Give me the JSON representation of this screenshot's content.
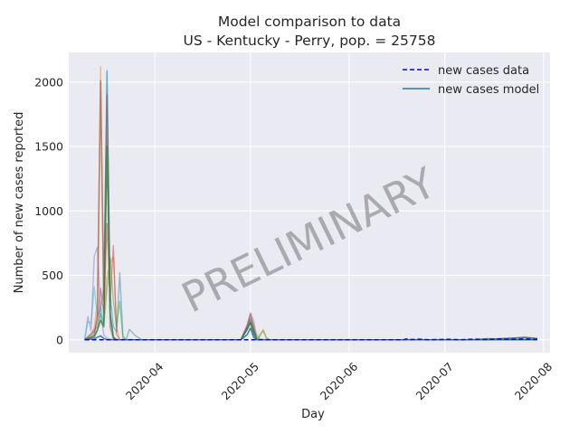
{
  "chart_data": {
    "type": "line",
    "title_line1": "Model comparison to data",
    "title_line2": "US - Kentucky - Perry, pop. = 25758",
    "xlabel": "Day",
    "ylabel": "Number of new cases reported",
    "watermark": "PRELIMINARY",
    "x_start": "2020-03-10",
    "x_end": "2020-07-30",
    "xlim": [
      "2020-03-05",
      "2020-08-03"
    ],
    "ylim": [
      -100,
      2230
    ],
    "x_ticks": [
      {
        "date": "2020-04-01",
        "label": "2020-04"
      },
      {
        "date": "2020-05-01",
        "label": "2020-05"
      },
      {
        "date": "2020-06-01",
        "label": "2020-06"
      },
      {
        "date": "2020-07-01",
        "label": "2020-07"
      },
      {
        "date": "2020-08-01",
        "label": "2020-08"
      }
    ],
    "y_ticks": [
      0,
      500,
      1000,
      1500,
      2000
    ],
    "grid": true,
    "legend": {
      "placement": "top-right",
      "entries": [
        {
          "label": "new cases data",
          "style": "dashed",
          "color": "#0000ff"
        },
        {
          "label": "new cases model",
          "style": "solid",
          "color": "#1f77b4"
        }
      ]
    },
    "series": [
      {
        "label": "new cases data",
        "color": "#0000ff",
        "dash": true,
        "opacity": 1,
        "width": 1.6,
        "points": [
          [
            "2020-03-10",
            0
          ],
          [
            "2020-04-15",
            0
          ],
          [
            "2020-06-18",
            0
          ],
          [
            "2020-06-19",
            6
          ],
          [
            "2020-06-20",
            1
          ],
          [
            "2020-06-23",
            4
          ],
          [
            "2020-06-26",
            0
          ],
          [
            "2020-07-02",
            3
          ],
          [
            "2020-07-06",
            0
          ],
          [
            "2020-07-10",
            4
          ],
          [
            "2020-07-14",
            2
          ],
          [
            "2020-07-18",
            6
          ],
          [
            "2020-07-22",
            3
          ],
          [
            "2020-07-26",
            5
          ],
          [
            "2020-07-30",
            2
          ]
        ]
      },
      {
        "color": "#9467bd",
        "opacity": 0.45,
        "width": 1.4,
        "points": [
          [
            "2020-03-10",
            0
          ],
          [
            "2020-03-11",
            180
          ],
          [
            "2020-03-12",
            70
          ],
          [
            "2020-03-13",
            650
          ],
          [
            "2020-03-14",
            720
          ],
          [
            "2020-03-15",
            200
          ],
          [
            "2020-03-16",
            40
          ],
          [
            "2020-03-17",
            10
          ],
          [
            "2020-03-18",
            5
          ],
          [
            "2020-03-20",
            0
          ],
          [
            "2020-04-28",
            0
          ],
          [
            "2020-04-30",
            120
          ],
          [
            "2020-05-01",
            210
          ],
          [
            "2020-05-02",
            150
          ],
          [
            "2020-05-03",
            20
          ],
          [
            "2020-05-05",
            0
          ],
          [
            "2020-07-30",
            0
          ]
        ]
      },
      {
        "color": "#17becf",
        "opacity": 0.45,
        "width": 1.4,
        "points": [
          [
            "2020-03-10",
            0
          ],
          [
            "2020-03-11",
            140
          ],
          [
            "2020-03-12",
            130
          ],
          [
            "2020-03-13",
            410
          ],
          [
            "2020-03-14",
            180
          ],
          [
            "2020-03-15",
            260
          ],
          [
            "2020-03-16",
            120
          ],
          [
            "2020-03-17",
            2080
          ],
          [
            "2020-03-18",
            200
          ],
          [
            "2020-03-19",
            20
          ],
          [
            "2020-03-20",
            0
          ],
          [
            "2020-04-28",
            0
          ],
          [
            "2020-04-30",
            90
          ],
          [
            "2020-05-01",
            160
          ],
          [
            "2020-05-02",
            80
          ],
          [
            "2020-05-04",
            0
          ],
          [
            "2020-07-30",
            0
          ]
        ]
      },
      {
        "color": "#ff7f0e",
        "opacity": 0.45,
        "width": 1.4,
        "points": [
          [
            "2020-03-10",
            0
          ],
          [
            "2020-03-12",
            30
          ],
          [
            "2020-03-13",
            100
          ],
          [
            "2020-03-14",
            300
          ],
          [
            "2020-03-15",
            2120
          ],
          [
            "2020-03-16",
            150
          ],
          [
            "2020-03-17",
            500
          ],
          [
            "2020-03-18",
            600
          ],
          [
            "2020-03-19",
            640
          ],
          [
            "2020-03-20",
            100
          ],
          [
            "2020-03-21",
            0
          ],
          [
            "2020-04-28",
            0
          ],
          [
            "2020-04-30",
            100
          ],
          [
            "2020-05-01",
            190
          ],
          [
            "2020-05-02",
            120
          ],
          [
            "2020-05-03",
            0
          ],
          [
            "2020-05-04",
            40
          ],
          [
            "2020-05-05",
            80
          ],
          [
            "2020-05-06",
            20
          ],
          [
            "2020-05-07",
            0
          ],
          [
            "2020-07-30",
            0
          ]
        ]
      },
      {
        "color": "#d62728",
        "opacity": 0.45,
        "width": 1.4,
        "points": [
          [
            "2020-03-10",
            0
          ],
          [
            "2020-03-13",
            60
          ],
          [
            "2020-03-14",
            150
          ],
          [
            "2020-03-15",
            400
          ],
          [
            "2020-03-16",
            200
          ],
          [
            "2020-03-17",
            900
          ],
          [
            "2020-03-18",
            300
          ],
          [
            "2020-03-19",
            730
          ],
          [
            "2020-03-20",
            40
          ],
          [
            "2020-03-21",
            0
          ],
          [
            "2020-04-28",
            0
          ],
          [
            "2020-04-30",
            110
          ],
          [
            "2020-05-01",
            200
          ],
          [
            "2020-05-02",
            100
          ],
          [
            "2020-05-03",
            0
          ],
          [
            "2020-07-30",
            0
          ]
        ]
      },
      {
        "color": "#1f77b4",
        "opacity": 0.45,
        "width": 1.4,
        "points": [
          [
            "2020-03-10",
            0
          ],
          [
            "2020-03-14",
            100
          ],
          [
            "2020-03-15",
            250
          ],
          [
            "2020-03-16",
            400
          ],
          [
            "2020-03-17",
            2090
          ],
          [
            "2020-03-18",
            350
          ],
          [
            "2020-03-19",
            100
          ],
          [
            "2020-03-20",
            60
          ],
          [
            "2020-03-21",
            520
          ],
          [
            "2020-03-22",
            30
          ],
          [
            "2020-03-23",
            0
          ],
          [
            "2020-03-24",
            80
          ],
          [
            "2020-03-26",
            30
          ],
          [
            "2020-03-28",
            0
          ],
          [
            "2020-04-28",
            0
          ],
          [
            "2020-04-30",
            100
          ],
          [
            "2020-05-01",
            170
          ],
          [
            "2020-05-02",
            90
          ],
          [
            "2020-05-03",
            0
          ],
          [
            "2020-07-30",
            0
          ]
        ]
      },
      {
        "color": "#2ca02c",
        "opacity": 0.45,
        "width": 1.4,
        "points": [
          [
            "2020-03-10",
            0
          ],
          [
            "2020-03-13",
            30
          ],
          [
            "2020-03-14",
            70
          ],
          [
            "2020-03-15",
            200
          ],
          [
            "2020-03-16",
            120
          ],
          [
            "2020-03-17",
            400
          ],
          [
            "2020-03-18",
            640
          ],
          [
            "2020-03-19",
            300
          ],
          [
            "2020-03-20",
            100
          ],
          [
            "2020-03-21",
            300
          ],
          [
            "2020-03-22",
            10
          ],
          [
            "2020-03-23",
            0
          ],
          [
            "2020-04-28",
            0
          ],
          [
            "2020-04-30",
            90
          ],
          [
            "2020-05-01",
            150
          ],
          [
            "2020-05-02",
            70
          ],
          [
            "2020-05-03",
            0
          ],
          [
            "2020-05-04",
            30
          ],
          [
            "2020-05-05",
            70
          ],
          [
            "2020-05-06",
            10
          ],
          [
            "2020-05-07",
            0
          ],
          [
            "2020-07-30",
            0
          ]
        ]
      },
      {
        "color": "#8c564b",
        "opacity": 0.6,
        "width": 1.6,
        "points": [
          [
            "2020-03-10",
            0
          ],
          [
            "2020-03-12",
            20
          ],
          [
            "2020-03-13",
            40
          ],
          [
            "2020-03-14",
            200
          ],
          [
            "2020-03-15",
            2010
          ],
          [
            "2020-03-16",
            300
          ],
          [
            "2020-03-17",
            1900
          ],
          [
            "2020-03-18",
            100
          ],
          [
            "2020-03-19",
            10
          ],
          [
            "2020-03-20",
            0
          ],
          [
            "2020-04-28",
            0
          ],
          [
            "2020-04-30",
            90
          ],
          [
            "2020-05-01",
            140
          ],
          [
            "2020-05-02",
            60
          ],
          [
            "2020-05-03",
            0
          ],
          [
            "2020-07-15",
            0
          ],
          [
            "2020-07-18",
            8
          ],
          [
            "2020-07-22",
            12
          ],
          [
            "2020-07-26",
            20
          ],
          [
            "2020-07-30",
            10
          ]
        ]
      },
      {
        "color": "#2e7d32",
        "opacity": 0.75,
        "width": 1.6,
        "points": [
          [
            "2020-03-10",
            0
          ],
          [
            "2020-03-13",
            20
          ],
          [
            "2020-03-14",
            80
          ],
          [
            "2020-03-15",
            150
          ],
          [
            "2020-03-16",
            100
          ],
          [
            "2020-03-17",
            1500
          ],
          [
            "2020-03-18",
            200
          ],
          [
            "2020-03-19",
            20
          ],
          [
            "2020-03-20",
            0
          ],
          [
            "2020-04-28",
            0
          ],
          [
            "2020-04-30",
            80
          ],
          [
            "2020-05-01",
            130
          ],
          [
            "2020-05-02",
            50
          ],
          [
            "2020-05-03",
            0
          ],
          [
            "2020-07-10",
            0
          ],
          [
            "2020-07-14",
            8
          ],
          [
            "2020-07-18",
            6
          ],
          [
            "2020-07-22",
            12
          ],
          [
            "2020-07-26",
            16
          ],
          [
            "2020-07-30",
            8
          ]
        ]
      },
      {
        "color": "#1f77b4",
        "opacity": 0.9,
        "width": 1.5,
        "points": [
          [
            "2020-03-10",
            0
          ],
          [
            "2020-03-13",
            5
          ],
          [
            "2020-03-14",
            20
          ],
          [
            "2020-03-15",
            30
          ],
          [
            "2020-03-16",
            10
          ],
          [
            "2020-03-17",
            0
          ],
          [
            "2020-04-28",
            0
          ],
          [
            "2020-04-30",
            40
          ],
          [
            "2020-05-01",
            90
          ],
          [
            "2020-05-02",
            20
          ],
          [
            "2020-05-03",
            0
          ],
          [
            "2020-07-30",
            0
          ]
        ]
      }
    ]
  }
}
